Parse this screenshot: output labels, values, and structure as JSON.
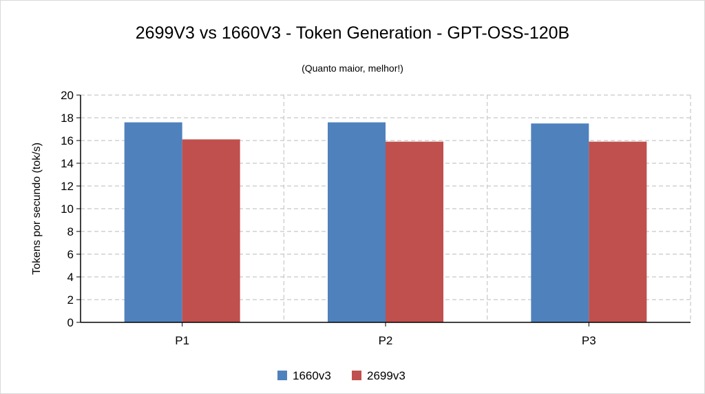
{
  "chart_data": {
    "type": "bar",
    "title": "2699V3 vs 1660V3 - Token Generation - GPT-OSS-120B",
    "subtitle": "(Quanto maior, melhor!)",
    "xlabel": "",
    "ylabel": "Tokens por secundo (tok/s)",
    "categories": [
      "P1",
      "P2",
      "P3"
    ],
    "series": [
      {
        "name": "1660v3",
        "color": "#4f81bd",
        "values": [
          17.6,
          17.6,
          17.5
        ]
      },
      {
        "name": "2699v3",
        "color": "#c0504d",
        "values": [
          16.1,
          15.9,
          15.9
        ]
      }
    ],
    "ylim": [
      0,
      20
    ],
    "yticks": [
      0,
      2,
      4,
      6,
      8,
      10,
      12,
      14,
      16,
      18,
      20
    ],
    "grid": true,
    "legend_position": "bottom-center"
  }
}
